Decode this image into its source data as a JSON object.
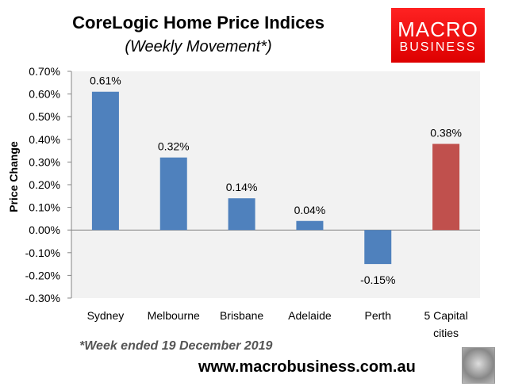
{
  "header": {
    "title": "CoreLogic Home Price Indices",
    "subtitle": "(Weekly Movement*)"
  },
  "logo": {
    "line1": "MACRO",
    "line2": "BUSINESS"
  },
  "footer": {
    "footnote": "*Week ended 19 December 2019",
    "url": "www.macrobusiness.com.au"
  },
  "chart_data": {
    "type": "bar",
    "title": "CoreLogic Home Price Indices",
    "subtitle": "(Weekly Movement*)",
    "xlabel": "",
    "ylabel": "Price Change",
    "ylim": [
      -0.3,
      0.7
    ],
    "yticks": [
      0.7,
      0.6,
      0.5,
      0.4,
      0.3,
      0.2,
      0.1,
      0.0,
      -0.1,
      -0.2,
      -0.3
    ],
    "ytick_labels": [
      "0.70%",
      "0.60%",
      "0.50%",
      "0.40%",
      "0.30%",
      "0.20%",
      "0.10%",
      "0.00%",
      "-0.10%",
      "-0.20%",
      "-0.30%"
    ],
    "categories": [
      [
        "Sydney"
      ],
      [
        "Melbourne"
      ],
      [
        "Brisbane"
      ],
      [
        "Adelaide"
      ],
      [
        "Perth"
      ],
      [
        "5 Capital",
        "cities"
      ]
    ],
    "values": [
      0.61,
      0.32,
      0.14,
      0.04,
      -0.15,
      0.38
    ],
    "data_labels": [
      "0.61%",
      "0.32%",
      "0.14%",
      "0.04%",
      "-0.15%",
      "0.38%"
    ],
    "colors": [
      "#4f81bd",
      "#4f81bd",
      "#4f81bd",
      "#4f81bd",
      "#4f81bd",
      "#c0504d"
    ],
    "plot_background": "#f2f2f2",
    "grid": false,
    "legend": "none"
  }
}
